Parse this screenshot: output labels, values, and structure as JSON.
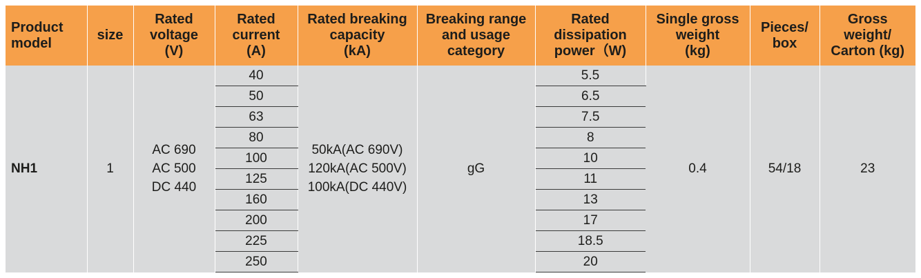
{
  "headers": {
    "product_model": [
      "Product",
      "model"
    ],
    "size": [
      "size"
    ],
    "rated_voltage": [
      "Rated",
      "voltage",
      "(V)"
    ],
    "rated_current": [
      "Rated",
      "current",
      "(A)"
    ],
    "breaking_capacity": [
      "Rated breaking",
      "capacity",
      "(kA)"
    ],
    "breaking_range": [
      "Breaking range",
      "and usage",
      "category"
    ],
    "dissipation_power": [
      "Rated",
      "dissipation",
      "power（W)"
    ],
    "single_weight": [
      "Single gross",
      "weight",
      "(kg)"
    ],
    "pieces_box": [
      "Pieces/",
      "box"
    ],
    "carton_weight": [
      "Gross",
      "weight/",
      "Carton (kg)"
    ]
  },
  "row": {
    "model": "NH1",
    "size": "1",
    "voltage": [
      "AC 690",
      "AC 500",
      "DC 440"
    ],
    "breaking_capacity": [
      "50kA(AC 690V)",
      "120kA(AC 500V)",
      "100kA(DC 440V)"
    ],
    "category": "gG",
    "single_weight": "0.4",
    "pieces_box": "54/18",
    "carton_weight": "23"
  },
  "variants": [
    {
      "current": "40",
      "power": "5.5"
    },
    {
      "current": "50",
      "power": "6.5"
    },
    {
      "current": "63",
      "power": "7.5"
    },
    {
      "current": "80",
      "power": "8"
    },
    {
      "current": "100",
      "power": "10"
    },
    {
      "current": "125",
      "power": "11"
    },
    {
      "current": "160",
      "power": "13"
    },
    {
      "current": "200",
      "power": "17"
    },
    {
      "current": "225",
      "power": "18.5"
    },
    {
      "current": "250",
      "power": "20"
    }
  ]
}
